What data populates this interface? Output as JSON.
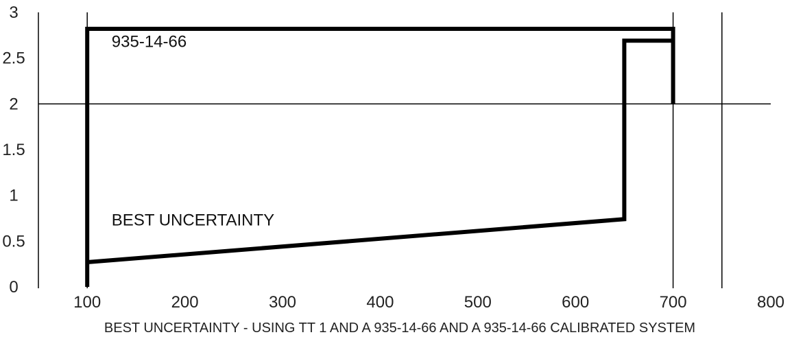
{
  "chart_data": {
    "type": "line",
    "title": "",
    "xlabel": "BEST UNCERTAINTY - USING TT 1 AND A 935-14-66 AND A 935-14-66 CALIBRATED SYSTEM",
    "ylabel": "",
    "xlim": [
      50,
      800
    ],
    "ylim": [
      0,
      3
    ],
    "x_ticks": [
      {
        "value": 100,
        "label": "100"
      },
      {
        "value": 200,
        "label": "200"
      },
      {
        "value": 300,
        "label": "300"
      },
      {
        "value": 400,
        "label": "400"
      },
      {
        "value": 500,
        "label": "500"
      },
      {
        "value": 600,
        "label": "600"
      },
      {
        "value": 700,
        "label": "700"
      },
      {
        "value": 800,
        "label": "800"
      }
    ],
    "y_ticks": [
      {
        "value": 0,
        "label": "0"
      },
      {
        "value": 0.5,
        "label": "0.5"
      },
      {
        "value": 1,
        "label": "1"
      },
      {
        "value": 1.5,
        "label": "1.5"
      },
      {
        "value": 2,
        "label": "2"
      },
      {
        "value": 2.5,
        "label": "2.5"
      },
      {
        "value": 3,
        "label": "3"
      }
    ],
    "grid": {
      "vertical_x": [
        50,
        100,
        700,
        750
      ],
      "horizontal_y": [
        2
      ]
    },
    "color": "#000000",
    "series": [
      {
        "label": "935-14-66",
        "x": [
          100,
          100,
          700,
          700
        ],
        "y": [
          0,
          2.82,
          2.82,
          2
        ]
      },
      {
        "label": "BEST UNCERTAINTY",
        "x": [
          100,
          650,
          650,
          700
        ],
        "y": [
          0.27,
          0.74,
          2.69,
          2.69
        ]
      }
    ]
  }
}
